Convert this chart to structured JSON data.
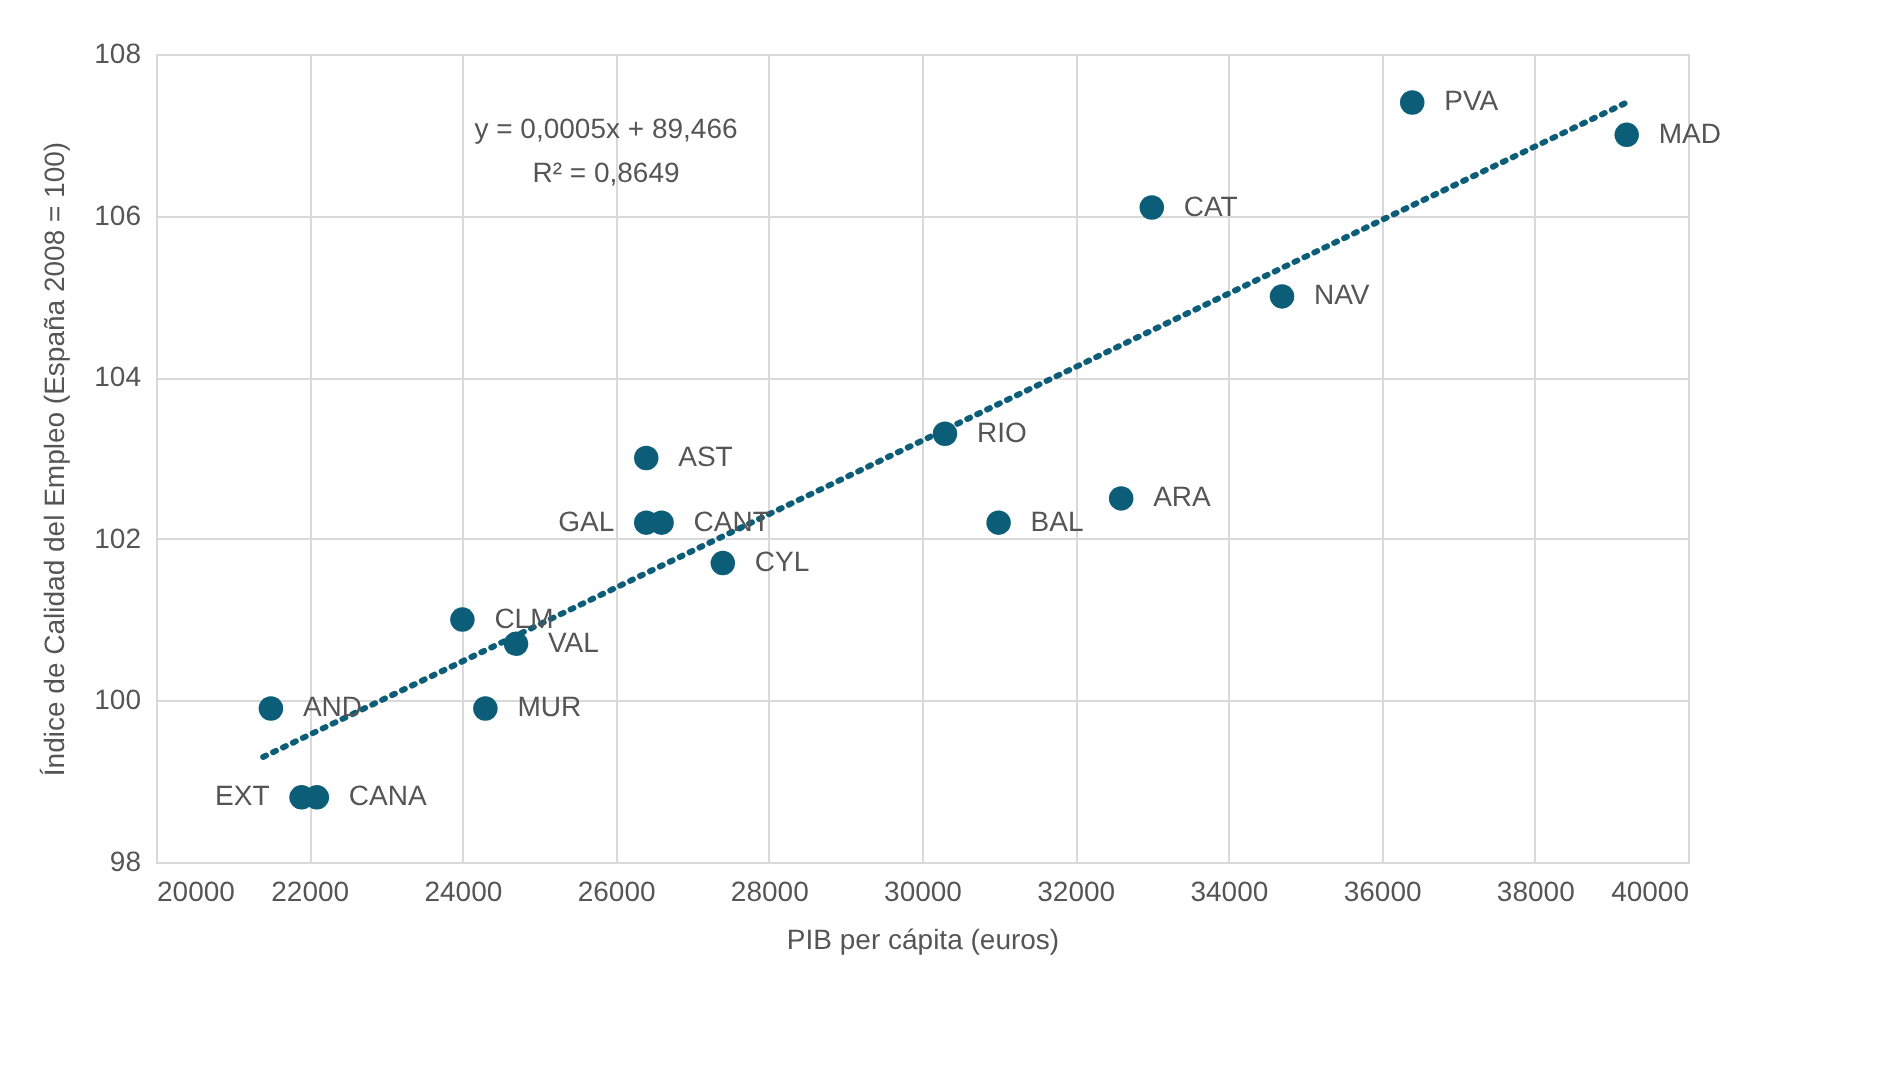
{
  "chart_data": {
    "type": "scatter",
    "xlabel": "PIB per cápita (euros)",
    "ylabel": "Índice de Calidad del Empleo (España 2008 = 100)",
    "xlim": [
      20000,
      40000
    ],
    "xticks": [
      20000,
      22000,
      24000,
      26000,
      28000,
      30000,
      32000,
      34000,
      36000,
      38000,
      40000
    ],
    "ylim": [
      98,
      108
    ],
    "yticks": [
      98,
      100,
      102,
      104,
      106,
      108
    ],
    "grid": true,
    "series": [
      {
        "color": "#0b5d78",
        "marker": "circle",
        "x": [
          36400,
          39200,
          33000,
          34700,
          30300,
          31000,
          32600,
          26400,
          26400,
          26600,
          27400,
          24000,
          24700,
          24300,
          21500,
          21900,
          22100
        ],
        "values": [
          107.4,
          107.0,
          106.1,
          105.0,
          103.3,
          102.2,
          102.5,
          103.0,
          102.2,
          102.2,
          101.7,
          101.0,
          100.7,
          99.9,
          99.9,
          98.8,
          98.8
        ]
      },
      {
        "type": "line",
        "color": "#0b5d78",
        "line_style": "dotted",
        "marker": "none",
        "x": [
          21400,
          39200
        ],
        "values": [
          99.3,
          107.4
        ]
      }
    ],
    "annotations": [
      "y = 0,0005x + 89,466",
      "R² = 0,8649",
      {
        "text": "PVA",
        "x": 36400,
        "y": 107.4
      },
      {
        "text": "MAD",
        "x": 39200,
        "y": 107.0
      },
      {
        "text": "CAT",
        "x": 33000,
        "y": 106.1
      },
      {
        "text": "NAV",
        "x": 34700,
        "y": 105.0
      },
      {
        "text": "RIO",
        "x": 30300,
        "y": 103.3
      },
      {
        "text": "BAL",
        "x": 31000,
        "y": 102.2
      },
      {
        "text": "ARA",
        "x": 32600,
        "y": 102.5
      },
      {
        "text": "AST",
        "x": 26400,
        "y": 103.0
      },
      {
        "text": "GAL",
        "x": 26400,
        "y": 102.2
      },
      {
        "text": "CANT",
        "x": 26600,
        "y": 102.2
      },
      {
        "text": "CYL",
        "x": 27400,
        "y": 101.7
      },
      {
        "text": "CLM",
        "x": 24000,
        "y": 101.0
      },
      {
        "text": "VAL",
        "x": 24700,
        "y": 100.7
      },
      {
        "text": "MUR",
        "x": 24300,
        "y": 99.9
      },
      {
        "text": "AND",
        "x": 21500,
        "y": 99.9
      },
      {
        "text": "EXT",
        "x": 21900,
        "y": 98.8
      },
      {
        "text": "CANA",
        "x": 22100,
        "y": 98.8
      }
    ]
  }
}
